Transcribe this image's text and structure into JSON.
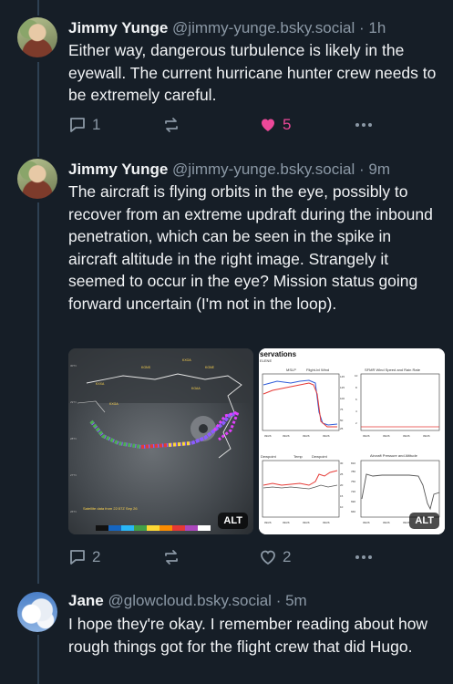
{
  "posts": [
    {
      "author": "Jimmy Yunge",
      "handle": "@jimmy-yunge.bsky.social",
      "separator": "·",
      "time": "1h",
      "text": "Either way, dangerous turbulence is likely in the eyewall. The current hurricane hunter crew needs to be extremely careful.",
      "actions": {
        "reply_count": "1",
        "repost_count": "",
        "like_count": "5",
        "liked": true
      }
    },
    {
      "author": "Jimmy Yunge",
      "handle": "@jimmy-yunge.bsky.social",
      "separator": "·",
      "time": "9m",
      "text": "The aircraft is flying orbits in the eye, possibly to recover from an extreme updraft during the inbound penetration, which can be seen in the spike in aircraft altitude in the right image. Strangely it seemed to occur in the eye? Mission status going forward uncertain (I'm not in the loop).",
      "images": [
        {
          "alt_badge": "ALT",
          "caption": "Satellite data from 22:57Z Sep 26"
        },
        {
          "alt_badge": "ALT",
          "title": "servations",
          "subtitle": "ELENE",
          "panels": [
            "MSLP",
            "Flight-lvl Wind",
            "SFMR Wind Speed and Rain Rate",
            "Dewpoint",
            "Temp",
            "Dewpoint",
            "Aircraft Pressure and Altitude"
          ]
        }
      ],
      "actions": {
        "reply_count": "2",
        "repost_count": "",
        "like_count": "2",
        "liked": false
      }
    },
    {
      "author": "Jane",
      "handle": "@glowcloud.bsky.social",
      "separator": "·",
      "time": "5m",
      "text": "I hope they're okay. I remember reading about how rough things got for the flight crew that did Hugo."
    }
  ],
  "colors": {
    "background": "#161e27",
    "muted": "#8b98a5",
    "like": "#ec4899",
    "thread_line": "#2e4052"
  }
}
